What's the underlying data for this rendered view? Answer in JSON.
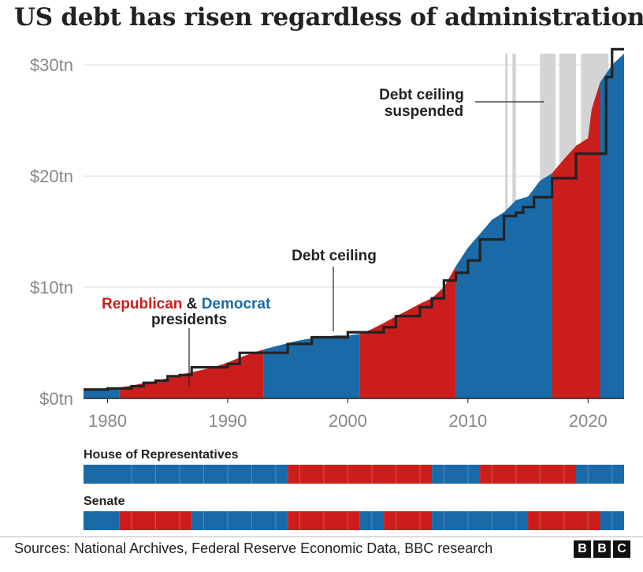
{
  "title": "US debt has risen regardless of administration",
  "colors": {
    "republican": "#cc1d1d",
    "democrat": "#1a6aa8",
    "suspended": "#d4d4d4",
    "ceiling": "#222222"
  },
  "annotations": {
    "ceiling": "Debt ceiling",
    "suspended_line1": "Debt ceiling",
    "suspended_line2": "suspended",
    "republican": "Republican",
    "amp": " & ",
    "democrat": "Democrat",
    "presidents": "presidents"
  },
  "chart_data": {
    "type": "area",
    "xlim": [
      1978,
      2023
    ],
    "ylim": [
      0,
      31
    ],
    "x_ticks": [
      1980,
      1990,
      2000,
      2010,
      2020
    ],
    "x_tick_labels": [
      "1980",
      "1990",
      "2000",
      "2010",
      "2020"
    ],
    "y_ticks": [
      0,
      10,
      20,
      30
    ],
    "y_tick_labels": [
      "$0tn",
      "$10tn",
      "$20tn",
      "$30tn"
    ],
    "debt": [
      [
        1978,
        0.78
      ],
      [
        1980,
        0.91
      ],
      [
        1981,
        1.0
      ],
      [
        1982,
        1.14
      ],
      [
        1983,
        1.37
      ],
      [
        1984,
        1.57
      ],
      [
        1985,
        1.82
      ],
      [
        1986,
        2.13
      ],
      [
        1987,
        2.35
      ],
      [
        1988,
        2.6
      ],
      [
        1989,
        2.86
      ],
      [
        1990,
        3.23
      ],
      [
        1991,
        3.67
      ],
      [
        1992,
        4.06
      ],
      [
        1993,
        4.41
      ],
      [
        1994,
        4.69
      ],
      [
        1995,
        4.97
      ],
      [
        1996,
        5.22
      ],
      [
        1997,
        5.41
      ],
      [
        1998,
        5.53
      ],
      [
        1999,
        5.66
      ],
      [
        2000,
        5.67
      ],
      [
        2001,
        5.81
      ],
      [
        2002,
        6.23
      ],
      [
        2003,
        6.78
      ],
      [
        2004,
        7.38
      ],
      [
        2005,
        7.93
      ],
      [
        2006,
        8.51
      ],
      [
        2007,
        9.01
      ],
      [
        2008,
        10.0
      ],
      [
        2009,
        11.9
      ],
      [
        2010,
        13.56
      ],
      [
        2011,
        14.79
      ],
      [
        2012,
        16.07
      ],
      [
        2013,
        16.74
      ],
      [
        2014,
        17.82
      ],
      [
        2015,
        18.15
      ],
      [
        2016,
        19.57
      ],
      [
        2017,
        20.24
      ],
      [
        2018,
        21.52
      ],
      [
        2019,
        22.72
      ],
      [
        2020,
        23.4
      ],
      [
        2020.3,
        26.0
      ],
      [
        2021,
        28.4
      ],
      [
        2022,
        30.0
      ],
      [
        2023,
        31.0
      ]
    ],
    "debt_ceiling_steps": [
      [
        1978,
        0.8
      ],
      [
        1980,
        0.9
      ],
      [
        1982,
        1.1
      ],
      [
        1983,
        1.4
      ],
      [
        1984,
        1.6
      ],
      [
        1985,
        2.0
      ],
      [
        1986,
        2.1
      ],
      [
        1987,
        2.8
      ],
      [
        1990,
        3.1
      ],
      [
        1991,
        4.1
      ],
      [
        1995,
        4.9
      ],
      [
        1997,
        5.5
      ],
      [
        2000,
        5.95
      ],
      [
        2003,
        6.4
      ],
      [
        2004,
        7.4
      ],
      [
        2006,
        8.2
      ],
      [
        2007,
        9.0
      ],
      [
        2008,
        10.6
      ],
      [
        2009,
        11.3
      ],
      [
        2010,
        12.4
      ],
      [
        2011,
        14.3
      ],
      [
        2013,
        16.4
      ],
      [
        2014,
        16.7
      ],
      [
        2014.6,
        17.2
      ],
      [
        2015.5,
        18.1
      ],
      [
        2017,
        19.8
      ],
      [
        2019,
        22.0
      ],
      [
        2021.5,
        28.9
      ],
      [
        2022,
        31.4
      ],
      [
        2023,
        31.4
      ]
    ],
    "presidents": [
      {
        "party": "D",
        "from": 1978,
        "to": 1981
      },
      {
        "party": "R",
        "from": 1981,
        "to": 1993
      },
      {
        "party": "D",
        "from": 1993,
        "to": 2001
      },
      {
        "party": "R",
        "from": 2001,
        "to": 2009
      },
      {
        "party": "D",
        "from": 2009,
        "to": 2017
      },
      {
        "party": "R",
        "from": 2017,
        "to": 2021
      },
      {
        "party": "D",
        "from": 2021,
        "to": 2023
      }
    ],
    "suspended_periods": [
      [
        2013.1,
        2013.3
      ],
      [
        2013.7,
        2014.0
      ],
      [
        2016.0,
        2017.3
      ],
      [
        2017.6,
        2019.0
      ],
      [
        2019.4,
        2021.7
      ]
    ]
  },
  "panels": [
    {
      "label": "House of Representatives",
      "segments": [
        {
          "party": "D",
          "from": 1978,
          "to": 1995
        },
        {
          "party": "R",
          "from": 1995,
          "to": 2007
        },
        {
          "party": "D",
          "from": 2007,
          "to": 2011
        },
        {
          "party": "R",
          "from": 2011,
          "to": 2019
        },
        {
          "party": "D",
          "from": 2019,
          "to": 2023
        }
      ]
    },
    {
      "label": "Senate",
      "segments": [
        {
          "party": "D",
          "from": 1978,
          "to": 1981
        },
        {
          "party": "R",
          "from": 1981,
          "to": 1987
        },
        {
          "party": "D",
          "from": 1987,
          "to": 1995
        },
        {
          "party": "R",
          "from": 1995,
          "to": 2001
        },
        {
          "party": "D",
          "from": 2001,
          "to": 2003
        },
        {
          "party": "R",
          "from": 2003,
          "to": 2007
        },
        {
          "party": "D",
          "from": 2007,
          "to": 2015
        },
        {
          "party": "R",
          "from": 2015,
          "to": 2021
        },
        {
          "party": "D",
          "from": 2021,
          "to": 2023
        }
      ]
    }
  ],
  "source": "Sources: National Archives, Federal Reserve Economic Data, BBC research",
  "logo": [
    "B",
    "B",
    "C"
  ]
}
